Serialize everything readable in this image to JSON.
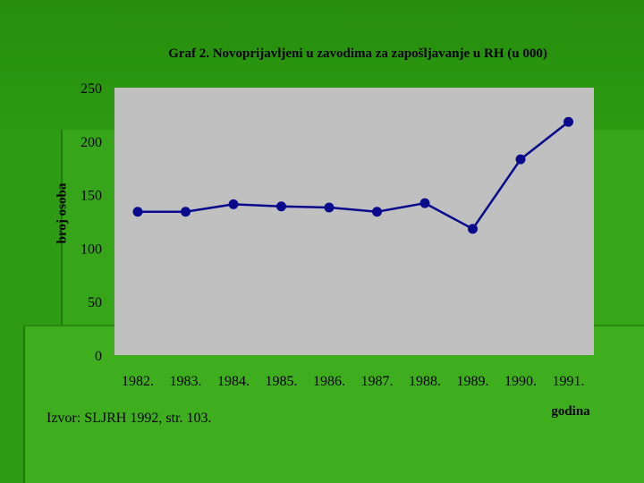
{
  "chart_data": {
    "type": "line",
    "title": "Graf 2. Novoprijavljeni u zavodima za zapošljavanje u RH (u 000)",
    "xlabel": "godina",
    "ylabel": "broj osoba",
    "categories": [
      "1982.",
      "1983.",
      "1984.",
      "1985.",
      "1986.",
      "1987.",
      "1988.",
      "1989.",
      "1990.",
      "1991."
    ],
    "series": [
      {
        "values": [
          134,
          134,
          141,
          139,
          138,
          134,
          142,
          118,
          183,
          218
        ]
      }
    ],
    "ylim": [
      0,
      250
    ],
    "yticks": [
      "0",
      "50",
      "100",
      "150",
      "200",
      "250"
    ],
    "grid": false,
    "legend": "none"
  },
  "source_note": "Izvor: SLJRH 1992, str. 103.",
  "colors": {
    "plot_area": "#c0c0c0",
    "line": "#0a0a8c",
    "background": "#2f9a13"
  }
}
